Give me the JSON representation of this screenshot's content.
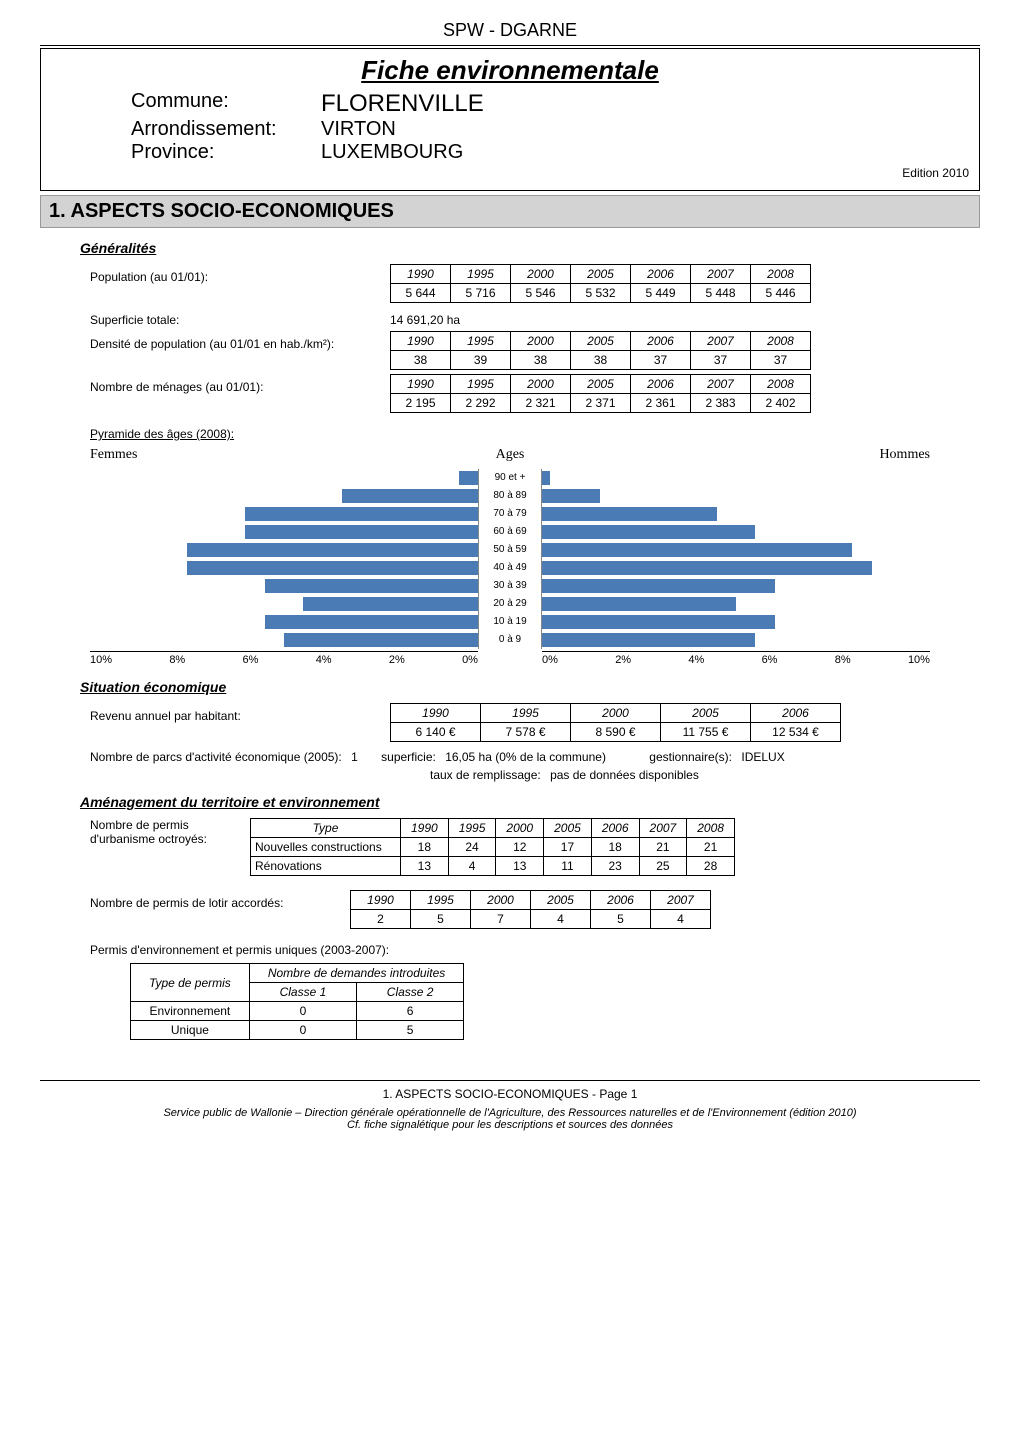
{
  "header": "SPW - DGARNE",
  "title": "Fiche environnementale",
  "geo": {
    "commune_label": "Commune:",
    "commune": "FLORENVILLE",
    "arr_label": "Arrondissement:",
    "arr": "VIRTON",
    "prov_label": "Province:",
    "prov": "LUXEMBOURG"
  },
  "edition": "Edition  2010",
  "section1": "1. ASPECTS SOCIO-ECONOMIQUES",
  "generalites": {
    "heading": "Généralités",
    "population_label": "Population (au 01/01):",
    "population": {
      "years": [
        "1990",
        "1995",
        "2000",
        "2005",
        "2006",
        "2007",
        "2008"
      ],
      "values": [
        "5 644",
        "5 716",
        "5 546",
        "5 532",
        "5 449",
        "5 448",
        "5 446"
      ]
    },
    "superficie_label": "Superficie totale:",
    "superficie_value": "14 691,20 ha",
    "densite_label": "Densité de population (au 01/01 en hab./km²):",
    "densite": {
      "years": [
        "1990",
        "1995",
        "2000",
        "2005",
        "2006",
        "2007",
        "2008"
      ],
      "values": [
        "38",
        "39",
        "38",
        "38",
        "37",
        "37",
        "37"
      ]
    },
    "menages_label": "Nombre de ménages (au 01/01):",
    "menages": {
      "years": [
        "1990",
        "1995",
        "2000",
        "2005",
        "2006",
        "2007",
        "2008"
      ],
      "values": [
        "2 195",
        "2 292",
        "2 321",
        "2 371",
        "2 361",
        "2 383",
        "2 402"
      ]
    }
  },
  "pyramide": {
    "heading": "Pyramide des âges (2008):",
    "left_title": "Femmes",
    "center_title": "Ages",
    "right_title": "Hommes",
    "age_labels": [
      "90 et +",
      "80 à 89",
      "70 à 79",
      "60 à 69",
      "50 à 59",
      "40 à 49",
      "30 à 39",
      "20 à 29",
      "10 à 19",
      "0 à 9"
    ],
    "femmes_pct": [
      0.5,
      3.5,
      6.0,
      6.0,
      7.5,
      7.5,
      5.5,
      4.5,
      5.5,
      5.0
    ],
    "hommes_pct": [
      0.2,
      1.5,
      4.5,
      5.5,
      8.0,
      8.5,
      6.0,
      5.0,
      6.0,
      5.5
    ],
    "axis_max": 10,
    "x_ticks": [
      "10%",
      "8%",
      "6%",
      "4%",
      "2%",
      "0%"
    ],
    "x_ticks_right": [
      "0%",
      "2%",
      "4%",
      "6%",
      "8%",
      "10%"
    ],
    "bar_color": "#4a7bb5"
  },
  "situation_eco": {
    "heading": "Situation économique",
    "revenu_label": "Revenu annuel par habitant:",
    "revenu": {
      "years": [
        "1990",
        "1995",
        "2000",
        "2005",
        "2006"
      ],
      "values": [
        "6 140 €",
        "7 578 €",
        "8 590 €",
        "11 755 €",
        "12 534 €"
      ]
    },
    "parcs_label": "Nombre de parcs d'activité économique (2005):",
    "parcs_count": "1",
    "superficie_label": "superficie:",
    "superficie_val": "16,05 ha (0% de la commune)",
    "gest_label": "gestionnaire(s):",
    "gest_val": "IDELUX",
    "taux_label": "taux de remplissage:",
    "taux_val": "pas de données disponibles"
  },
  "amenagement": {
    "heading": "Aménagement du territoire et environnement",
    "permis_urb_label1": "Nombre de permis",
    "permis_urb_label2": "d'urbanisme octroyés:",
    "urb_table": {
      "header": [
        "Type",
        "1990",
        "1995",
        "2000",
        "2005",
        "2006",
        "2007",
        "2008"
      ],
      "rows": [
        [
          "Nouvelles constructions",
          "18",
          "24",
          "12",
          "17",
          "18",
          "21",
          "21"
        ],
        [
          "Rénovations",
          "13",
          "4",
          "13",
          "11",
          "23",
          "25",
          "28"
        ]
      ]
    },
    "lotir_label": "Nombre de permis de lotir accordés:",
    "lotir": {
      "years": [
        "1990",
        "1995",
        "2000",
        "2005",
        "2006",
        "2007"
      ],
      "values": [
        "2",
        "5",
        "7",
        "4",
        "5",
        "4"
      ]
    },
    "env_permis_label": "Permis d'environnement et permis uniques (2003-2007):",
    "env_table": {
      "col_type": "Type de permis",
      "col_group": "Nombre de demandes  introduites",
      "col_c1": "Classe 1",
      "col_c2": "Classe 2",
      "rows": [
        [
          "Environnement",
          "0",
          "6"
        ],
        [
          "Unique",
          "0",
          "5"
        ]
      ]
    }
  },
  "footer": {
    "page": "1. ASPECTS SOCIO-ECONOMIQUES - Page 1",
    "line1": "Service public de Wallonie – Direction générale opérationnelle de l'Agriculture, des Ressources naturelles et de l'Environnement (édition 2010)",
    "line2": "Cf. fiche signalétique pour les descriptions et sources des données"
  }
}
